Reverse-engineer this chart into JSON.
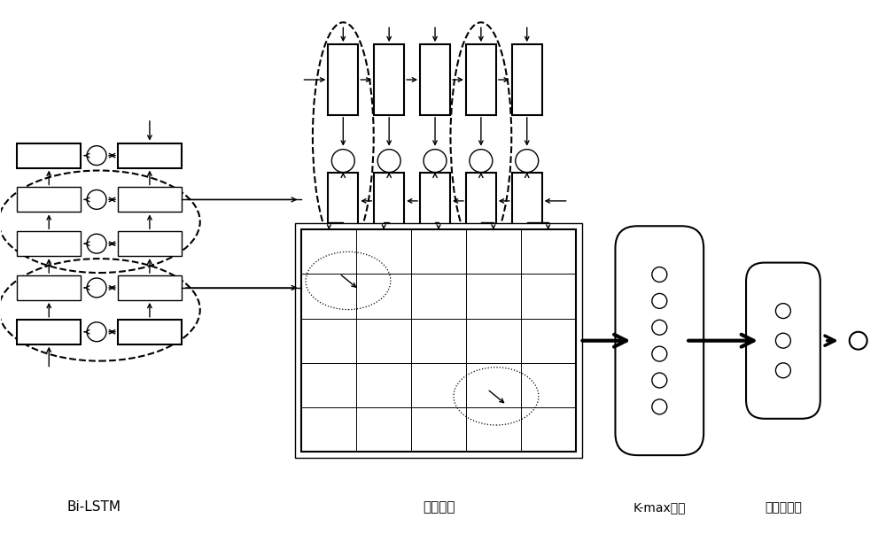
{
  "bg_color": "#ffffff",
  "label_bilstm": "Bi-LSTM",
  "label_interaction": "交互张量",
  "label_kmax": "K-max采样",
  "label_mlp": "多层感知机",
  "figsize": [
    10.0,
    6.29
  ],
  "dpi": 100,
  "xlim": [
    0,
    10
  ],
  "ylim": [
    0,
    6.29
  ]
}
